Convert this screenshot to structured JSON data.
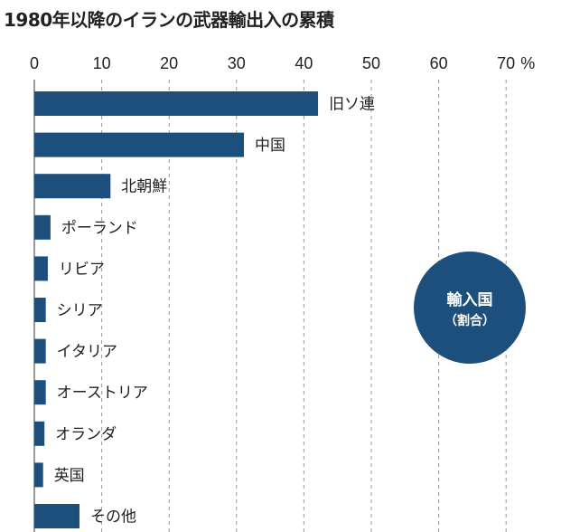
{
  "chart_data": {
    "type": "bar",
    "orientation": "horizontal",
    "title": "1980年以降のイランの武器輸出入の累積",
    "unit": "%",
    "xlim": [
      0,
      70
    ],
    "ticks": [
      0,
      10,
      20,
      30,
      40,
      50,
      60,
      70
    ],
    "tick_labels": [
      "0",
      "10",
      "20",
      "30",
      "40",
      "50",
      "60",
      "70"
    ],
    "grid": "vertical dashed",
    "categories": [
      "旧ソ連",
      "中国",
      "北朝鮮",
      "ポーランド",
      "リビア",
      "シリア",
      "イタリア",
      "オーストリア",
      "オランダ",
      "英国",
      "その他"
    ],
    "values": [
      42.1,
      31.1,
      11.3,
      2.4,
      2.0,
      1.7,
      1.7,
      1.7,
      1.5,
      1.3,
      6.7
    ],
    "legend": {
      "line1": "輸入国",
      "line2": "（割合）"
    },
    "colors": {
      "bar": "#1d4f7c",
      "grid": "#999999"
    }
  }
}
